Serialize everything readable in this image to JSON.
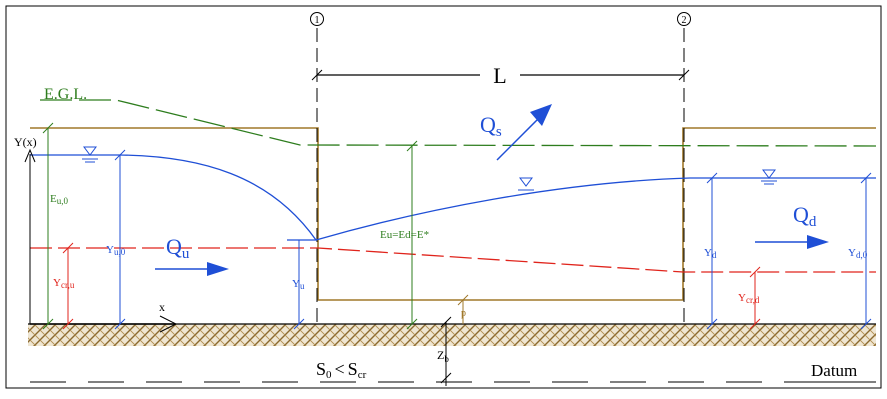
{
  "labels": {
    "section1": "1",
    "section2": "2",
    "length": "L",
    "egl": "E.G.L.",
    "qs_main": "Q",
    "qs_sub": "s",
    "qu_main": "Q",
    "qu_sub": "u",
    "qd_main": "Q",
    "qd_sub": "d",
    "y_axis": "Y(x)",
    "x_axis": "x",
    "eu0_main": "E",
    "eu0_sub": "u,0",
    "yu0_main": "Y",
    "yu0_sub": "u,0",
    "ycru_main": "Y",
    "ycru_sub": "cr,u",
    "yu_main": "Y",
    "yu_sub": "u",
    "energy_eq": "Eu=Ed=E*",
    "p": "p",
    "zb_main": "Z",
    "zb_sub": "b",
    "yd_main": "Y",
    "yd_sub": "d",
    "yd0_main": "Y",
    "yd0_sub": "d,0",
    "ycrd_main": "Y",
    "ycrd_sub": "cr,d",
    "slope_s0": "S",
    "slope_s0_sub": "0",
    "slope_lt": "<",
    "slope_scr": "S",
    "slope_scr_sub": "cr",
    "datum": "Datum"
  },
  "colors": {
    "channel": "#a0782a",
    "egl": "#2e7d1e",
    "water": "#1f4fd6",
    "critical": "#e0241c",
    "label_blue": "#1f4fd6",
    "label_green": "#2e7d1e",
    "label_red": "#e0241c",
    "hatch": "#9c7a3c",
    "black": "#000000"
  }
}
